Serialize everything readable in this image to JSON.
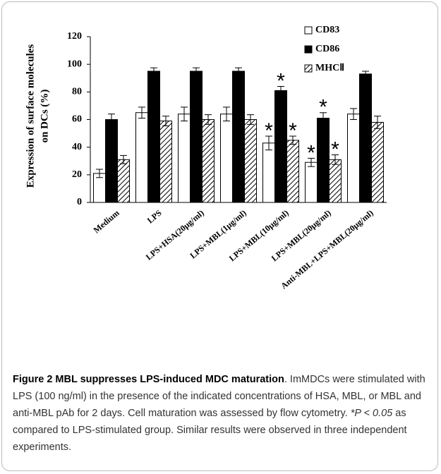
{
  "chart_data": {
    "type": "bar",
    "ylabel": [
      "Expression of surface molecules",
      "on DCs (%)"
    ],
    "categories": [
      "Medium",
      "LPS",
      "LPS+HSA(20μg/ml)",
      "LPS+MBL(1μg/ml)",
      "LPS+MBL(10μg/ml)",
      "LPS+MBL(20μg/ml)",
      "Anti-MBL+LPS+MBL(20μg/ml)"
    ],
    "series": [
      {
        "name": "CD83",
        "color": "#ffffff",
        "hatch": false,
        "values": [
          21,
          65,
          64,
          64,
          43,
          29,
          64
        ],
        "errors": [
          3,
          4,
          5,
          5,
          5,
          3,
          4
        ],
        "markers": [
          null,
          null,
          null,
          null,
          "*",
          "*",
          null
        ]
      },
      {
        "name": "CD86",
        "color": "#000000",
        "hatch": false,
        "values": [
          60,
          95,
          95,
          95,
          81,
          61,
          93
        ],
        "errors": [
          4,
          2.5,
          2.5,
          2.5,
          3,
          4,
          2
        ],
        "markers": [
          null,
          null,
          null,
          null,
          "*",
          "*",
          null
        ]
      },
      {
        "name": "MHCⅡ",
        "color": "#ffffff",
        "hatch": true,
        "values": [
          31,
          59,
          60,
          60,
          45,
          31,
          58
        ],
        "errors": [
          3,
          3.5,
          3.5,
          3.5,
          3,
          3.5,
          4.5
        ],
        "markers": [
          null,
          null,
          null,
          null,
          "*",
          "*",
          null
        ]
      }
    ],
    "ylim": [
      0,
      120
    ],
    "yticks": [
      0,
      20,
      40,
      60,
      80,
      100,
      120
    ],
    "legend": "top-right"
  },
  "caption": {
    "title": "Figure 2 MBL suppresses LPS-induced MDC maturation",
    "text1": ". ImMDCs were stimulated with LPS (100 ng/ml) in the presence of the indicated concentrations of HSA, MBL, or MBL and anti-MBL pAb for 2 days. Cell maturation was assessed by flow cytometry. ",
    "italic": "*P < 0.05",
    "text2": " as compared to LPS-stimulated group. Similar results were observed in three independent experiments."
  }
}
